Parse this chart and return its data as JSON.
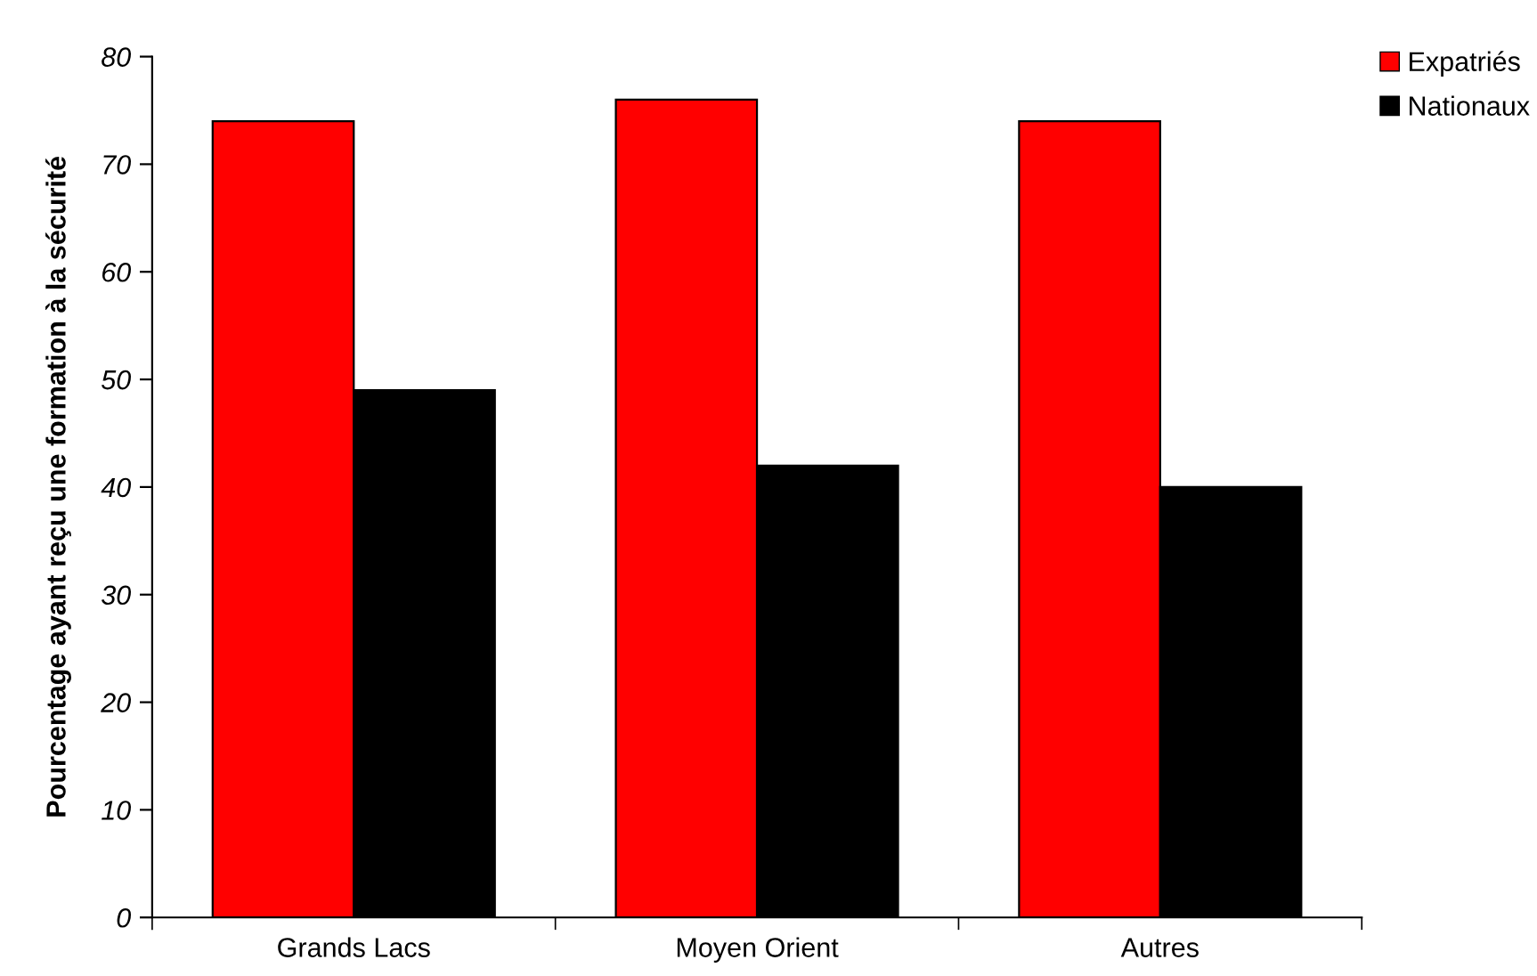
{
  "chart_data": {
    "type": "bar",
    "ylabel": "Pourcentage ayant reçu une formation à la sécurité",
    "categories": [
      "Grands Lacs",
      "Moyen Orient",
      "Autres"
    ],
    "series": [
      {
        "name": "Expatriés",
        "color": "#ff0000",
        "values": [
          74,
          76,
          74
        ]
      },
      {
        "name": "Nationaux",
        "color": "#000000",
        "values": [
          49,
          42,
          40
        ]
      }
    ],
    "ylim": [
      0,
      80
    ],
    "yticks": [
      0,
      10,
      20,
      30,
      40,
      50,
      60,
      70,
      80
    ],
    "grid": false,
    "legend": "top right"
  }
}
